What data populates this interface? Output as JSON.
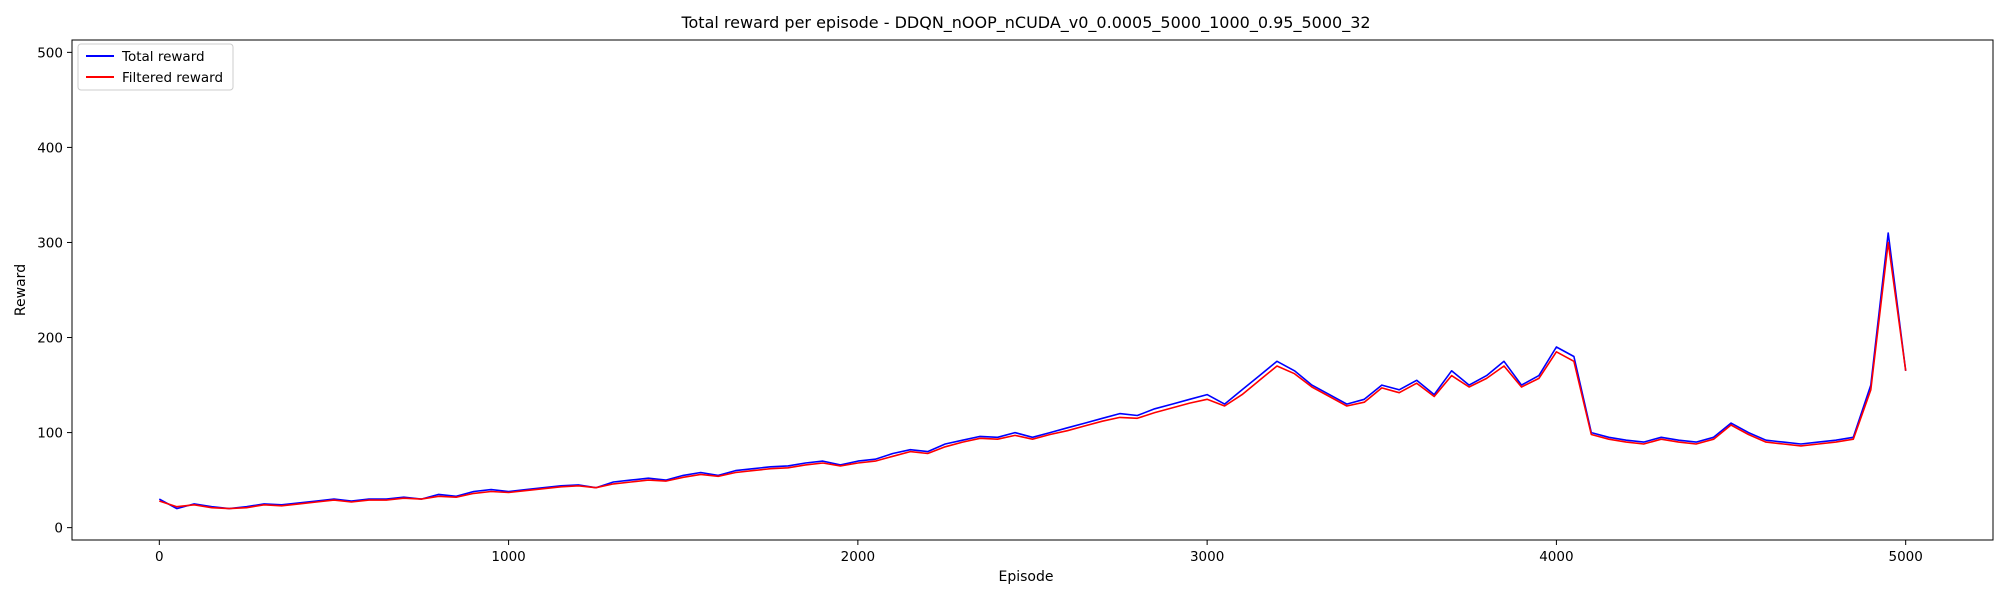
{
  "chart_data": {
    "type": "line",
    "title": "Total reward per episode - DDQN_nOOP_nCUDA_v0_0.0005_5000_1000_0.95_5000_32",
    "xlabel": "Episode",
    "ylabel": "Reward",
    "xlim": [
      -250,
      5250
    ],
    "ylim": [
      -13,
      513
    ],
    "xticks": [
      0,
      1000,
      2000,
      3000,
      4000,
      5000
    ],
    "yticks": [
      0,
      100,
      200,
      300,
      400,
      500
    ],
    "grid": false,
    "legend_position": "top-left",
    "series": [
      {
        "name": "Total reward",
        "color": "#0000ff",
        "x": [
          0,
          50,
          100,
          150,
          200,
          250,
          300,
          350,
          400,
          450,
          500,
          550,
          600,
          650,
          700,
          750,
          800,
          850,
          900,
          950,
          1000,
          1050,
          1100,
          1150,
          1200,
          1250,
          1300,
          1350,
          1400,
          1450,
          1500,
          1550,
          1600,
          1650,
          1700,
          1750,
          1800,
          1850,
          1900,
          1950,
          2000,
          2050,
          2100,
          2150,
          2200,
          2250,
          2300,
          2350,
          2400,
          2450,
          2500,
          2550,
          2600,
          2650,
          2700,
          2750,
          2800,
          2850,
          2900,
          2950,
          3000,
          3050,
          3100,
          3150,
          3200,
          3250,
          3300,
          3350,
          3400,
          3450,
          3500,
          3550,
          3600,
          3650,
          3700,
          3750,
          3800,
          3850,
          3900,
          3950,
          4000,
          4050,
          4100,
          4150,
          4200,
          4250,
          4300,
          4350,
          4400,
          4450,
          4500,
          4550,
          4600,
          4650,
          4700,
          4750,
          4800,
          4850,
          4900,
          4950,
          5000
        ],
        "y": [
          30,
          20,
          25,
          22,
          20,
          22,
          25,
          24,
          26,
          28,
          30,
          28,
          30,
          30,
          32,
          30,
          35,
          33,
          38,
          40,
          38,
          40,
          42,
          44,
          45,
          42,
          48,
          50,
          52,
          50,
          55,
          58,
          55,
          60,
          62,
          64,
          65,
          68,
          70,
          66,
          70,
          72,
          78,
          82,
          80,
          88,
          92,
          96,
          95,
          100,
          95,
          100,
          105,
          110,
          115,
          120,
          118,
          125,
          130,
          135,
          140,
          130,
          145,
          160,
          175,
          165,
          150,
          140,
          130,
          135,
          150,
          145,
          155,
          140,
          165,
          150,
          160,
          175,
          150,
          160,
          190,
          180,
          100,
          95,
          92,
          90,
          95,
          92,
          90,
          95,
          110,
          100,
          92,
          90,
          88,
          90,
          92,
          95,
          150,
          310,
          165
        ]
      },
      {
        "name": "Filtered reward",
        "color": "#ff0000",
        "x": [
          0,
          50,
          100,
          150,
          200,
          250,
          300,
          350,
          400,
          450,
          500,
          550,
          600,
          650,
          700,
          750,
          800,
          850,
          900,
          950,
          1000,
          1050,
          1100,
          1150,
          1200,
          1250,
          1300,
          1350,
          1400,
          1450,
          1500,
          1550,
          1600,
          1650,
          1700,
          1750,
          1800,
          1850,
          1900,
          1950,
          2000,
          2050,
          2100,
          2150,
          2200,
          2250,
          2300,
          2350,
          2400,
          2450,
          2500,
          2550,
          2600,
          2650,
          2700,
          2750,
          2800,
          2850,
          2900,
          2950,
          3000,
          3050,
          3100,
          3150,
          3200,
          3250,
          3300,
          3350,
          3400,
          3450,
          3500,
          3550,
          3600,
          3650,
          3700,
          3750,
          3800,
          3850,
          3900,
          3950,
          4000,
          4050,
          4100,
          4150,
          4200,
          4250,
          4300,
          4350,
          4400,
          4450,
          4500,
          4550,
          4600,
          4650,
          4700,
          4750,
          4800,
          4850,
          4900,
          4950,
          5000
        ],
        "y": [
          28,
          22,
          24,
          21,
          20,
          21,
          24,
          23,
          25,
          27,
          29,
          27,
          29,
          29,
          31,
          30,
          33,
          32,
          36,
          38,
          37,
          39,
          41,
          43,
          44,
          42,
          46,
          48,
          50,
          49,
          53,
          56,
          54,
          58,
          60,
          62,
          63,
          66,
          68,
          65,
          68,
          70,
          75,
          80,
          78,
          85,
          90,
          94,
          93,
          97,
          93,
          98,
          102,
          107,
          112,
          116,
          115,
          121,
          126,
          131,
          135,
          128,
          140,
          155,
          170,
          162,
          148,
          138,
          128,
          132,
          147,
          142,
          152,
          138,
          160,
          148,
          157,
          170,
          148,
          157,
          185,
          175,
          98,
          93,
          90,
          88,
          93,
          90,
          88,
          93,
          108,
          98,
          90,
          88,
          86,
          88,
          90,
          93,
          145,
          300,
          165
        ]
      }
    ]
  }
}
